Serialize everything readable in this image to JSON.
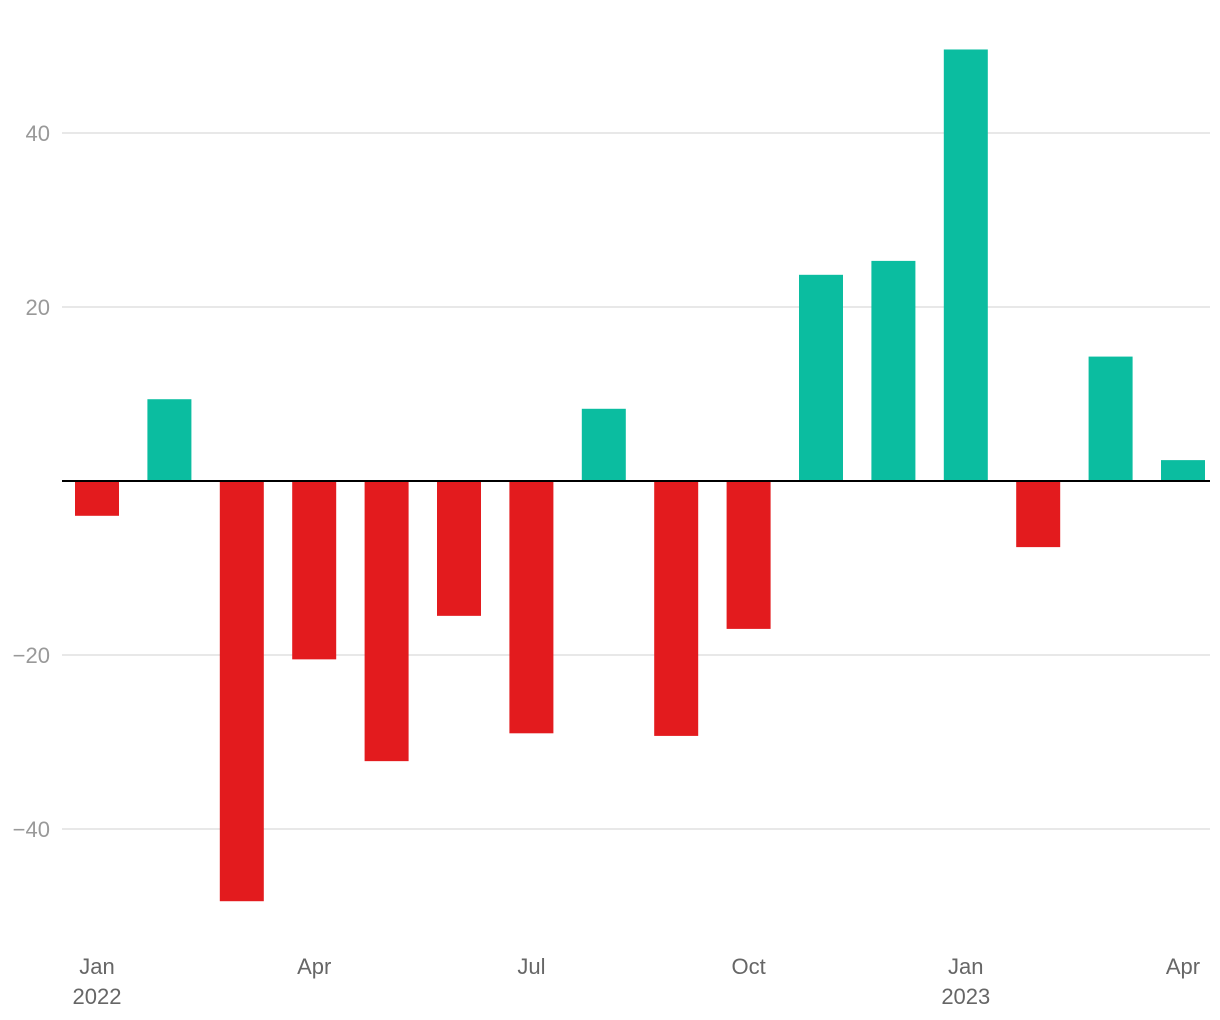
{
  "chart_data": {
    "type": "bar",
    "title": "",
    "xlabel": "",
    "ylabel": "",
    "x": [
      "2022-01",
      "2022-02",
      "2022-03",
      "2022-04",
      "2022-05",
      "2022-06",
      "2022-07",
      "2022-08",
      "2022-09",
      "2022-10",
      "2022-11",
      "2022-12",
      "2023-01",
      "2023-02",
      "2023-03",
      "2023-04"
    ],
    "values": [
      -4,
      9.4,
      -48.3,
      -20.5,
      -32.2,
      -15.5,
      -29,
      8.3,
      -29.3,
      -17,
      23.7,
      25.3,
      49.6,
      -7.6,
      14.3,
      2.4
    ],
    "ylim": [
      -53,
      54
    ],
    "yticks": [
      -40,
      -20,
      0,
      20,
      40
    ],
    "ytick_labels": [
      "−40",
      "−20",
      "",
      "20",
      "40"
    ],
    "xtick_labels": [
      {
        "date": "2022-01",
        "label": "Jan",
        "year": "2022"
      },
      {
        "date": "2022-04",
        "label": "Apr",
        "year": ""
      },
      {
        "date": "2022-07",
        "label": "Jul",
        "year": ""
      },
      {
        "date": "2022-10",
        "label": "Oct",
        "year": ""
      },
      {
        "date": "2023-01",
        "label": "Jan",
        "year": "2023"
      },
      {
        "date": "2023-04",
        "label": "Apr",
        "year": ""
      }
    ],
    "grid": true,
    "legend": "none",
    "colors": {
      "positive": "#0bbda0",
      "negative": "#e31b1e",
      "grid": "#e0e0e0",
      "zero_line": "#000000",
      "tick_label": "#999999",
      "x_tick_label": "#666666"
    }
  }
}
